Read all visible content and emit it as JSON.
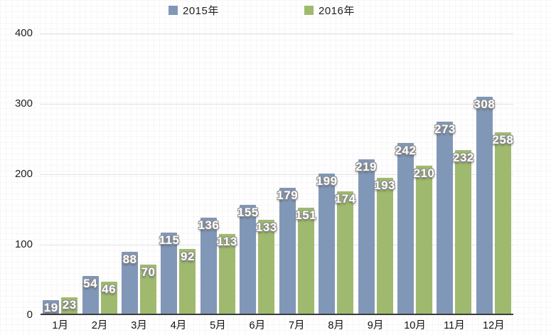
{
  "chart": {
    "background_color": "#ffffff",
    "axis_line_color": "#3b3b3b",
    "gridline_color": "#e3e1e1",
    "tick_label_color": "#222222",
    "value_label_color": "#ffffff"
  },
  "legend": {
    "position": "top",
    "items": [
      {
        "label": "2015年",
        "color": "#8197b7"
      },
      {
        "label": "2016年",
        "color": "#9fba6e"
      }
    ]
  },
  "chart_data": {
    "type": "bar",
    "title": "",
    "xlabel": "",
    "ylabel": "",
    "categories": [
      "1月",
      "2月",
      "3月",
      "4月",
      "5月",
      "6月",
      "7月",
      "8月",
      "9月",
      "10月",
      "11月",
      "12月"
    ],
    "series": [
      {
        "name": "2015年",
        "color": "#8197b7",
        "values": [
          19,
          54,
          88,
          115,
          136,
          155,
          179,
          199,
          219,
          242,
          273,
          308
        ]
      },
      {
        "name": "2016年",
        "color": "#9fba6e",
        "values": [
          23,
          46,
          70,
          92,
          113,
          133,
          151,
          174,
          193,
          210,
          232,
          258
        ]
      }
    ],
    "ylim": [
      0,
      400
    ],
    "yticks": [
      0,
      100,
      200,
      300,
      400
    ],
    "grid": true,
    "legend_position": "top",
    "value_labels": true
  }
}
